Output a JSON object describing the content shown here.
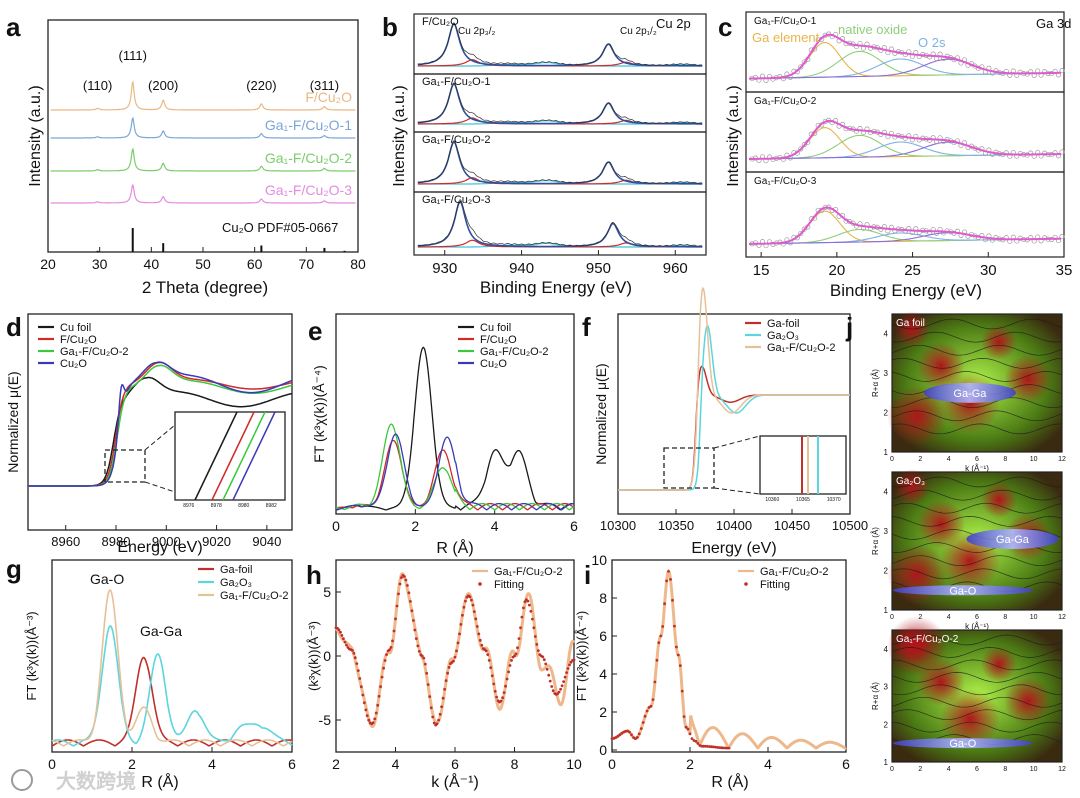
{
  "watermark": "大数跨境",
  "panels": {
    "a": {
      "letter": "a",
      "xlabel": "2 Theta (degree)",
      "ylabel": "Intensity (a.u.)",
      "xticks": [
        "20",
        "30",
        "40",
        "50",
        "60",
        "70",
        "80"
      ],
      "peak_labels": [
        "(110)",
        "(111)",
        "(200)",
        "(220)",
        "(311)"
      ],
      "series": [
        {
          "name": "F/Cu₂O",
          "color": "#e9b884"
        },
        {
          "name": "Ga₁-F/Cu₂O-1",
          "color": "#7aa7d8"
        },
        {
          "name": "Ga₁-F/Cu₂O-2",
          "color": "#7dcc6c"
        },
        {
          "name": "Ga₁-F/Cu₂O-3",
          "color": "#e58be0"
        }
      ],
      "reference": "Cu₂O PDF#05-0667"
    },
    "b": {
      "letter": "b",
      "tag": "Cu 2p",
      "xlabel": "Binding Energy (eV)",
      "ylabel": "Intensity (a.u.)",
      "xticks": [
        "930",
        "940",
        "950",
        "960"
      ],
      "peak_3_2": "Cu 2p₃/₂",
      "peak_1_2": "Cu 2p₁/₂",
      "samples": [
        "F/Cu₂O",
        "Ga₁-F/Cu₂O-1",
        "Ga₁-F/Cu₂O-2",
        "Ga₁-F/Cu₂O-3"
      ]
    },
    "c": {
      "letter": "c",
      "tag": "Ga 3d",
      "xlabel": "Binding Energy (eV)",
      "ylabel": "Intensity (a.u.)",
      "xticks": [
        "15",
        "20",
        "25",
        "30",
        "35"
      ],
      "samples": [
        "Ga₁-F/Cu₂O-1",
        "Ga₁-F/Cu₂O-2",
        "Ga₁-F/Cu₂O-3"
      ],
      "components": [
        {
          "name": "Ga element",
          "color": "#e8b44a"
        },
        {
          "name": "native oxide",
          "color": "#8fcf7a"
        },
        {
          "name": "O 2s",
          "color": "#7fb2e5"
        }
      ]
    },
    "d": {
      "letter": "d",
      "xlabel": "Energy (eV)",
      "ylabel": "Normalized μ(E)",
      "xticks": [
        "8960",
        "8980",
        "9000",
        "9020",
        "9040"
      ],
      "inset_ticks": [
        "8976",
        "8978",
        "8980",
        "8982"
      ],
      "legend": [
        {
          "name": "Cu foil",
          "color": "#1a1a1a"
        },
        {
          "name": "F/Cu₂O",
          "color": "#d22a2a"
        },
        {
          "name": "Ga₁-F/Cu₂O-2",
          "color": "#3cc83c"
        },
        {
          "name": "Cu₂O",
          "color": "#3a3ab8"
        }
      ]
    },
    "e": {
      "letter": "e",
      "xlabel": "R (Å)",
      "ylabel": "FT (k³χ(k))(Å⁻⁴)",
      "xticks": [
        "0",
        "2",
        "4",
        "6"
      ],
      "legend": [
        {
          "name": "Cu foil",
          "color": "#1a1a1a"
        },
        {
          "name": "F/Cu₂O",
          "color": "#d22a2a"
        },
        {
          "name": "Ga₁-F/Cu₂O-2",
          "color": "#3cc83c"
        },
        {
          "name": "Cu₂O",
          "color": "#3a3ab8"
        }
      ]
    },
    "f": {
      "letter": "f",
      "xlabel": "Energy (eV)",
      "ylabel": "Normalized μ(E)",
      "xticks": [
        "10300",
        "10350",
        "10400",
        "10450",
        "10500"
      ],
      "inset_ticks": [
        "10360",
        "10365",
        "10370"
      ],
      "legend": [
        {
          "name": "Ga-foil",
          "color": "#c0302a"
        },
        {
          "name": "Ga₂O₃",
          "color": "#5ad6dc"
        },
        {
          "name": "Ga₁-F/Cu₂O-2",
          "color": "#e7c09a"
        }
      ]
    },
    "g": {
      "letter": "g",
      "xlabel": "R (Å)",
      "ylabel": "FT (k³χ(k))(Å⁻³)",
      "xticks": [
        "0",
        "2",
        "4",
        "6"
      ],
      "annot_1": "Ga-O",
      "annot_2": "Ga-Ga",
      "legend": [
        {
          "name": "Ga-foil",
          "color": "#c0302a"
        },
        {
          "name": "Ga₂O₃",
          "color": "#5ad6dc"
        },
        {
          "name": "Ga₁-F/Cu₂O-2",
          "color": "#e7c09a"
        }
      ]
    },
    "h": {
      "letter": "h",
      "xlabel": "k (Å⁻¹)",
      "ylabel": "(k³χ(k))(Å⁻³)",
      "xticks": [
        "2",
        "4",
        "6",
        "8",
        "10"
      ],
      "yticks": [
        "5",
        "0",
        "-5"
      ],
      "legend": [
        {
          "name": "Ga₁-F/Cu₂O-2",
          "color": "#edb88c"
        },
        {
          "name": "Fitting",
          "color": "#c0302a"
        }
      ]
    },
    "i": {
      "letter": "i",
      "xlabel": "R (Å)",
      "ylabel": "FT (k³χ(k))(Å⁻⁴)",
      "xticks": [
        "0",
        "2",
        "4",
        "6"
      ],
      "yticks": [
        "10",
        "8",
        "6",
        "4",
        "2",
        "0"
      ],
      "legend": [
        {
          "name": "Ga₁-F/Cu₂O-2",
          "color": "#edb88c"
        },
        {
          "name": "Fitting",
          "color": "#c0302a"
        }
      ]
    },
    "j": {
      "letter": "j",
      "ylabel": "R+α (Å)",
      "xlabel": "k (Å⁻¹)",
      "xticks": [
        "0",
        "2",
        "4",
        "6",
        "8",
        "10",
        "12"
      ],
      "maps": [
        {
          "title": "Ga foil",
          "feature": "Ga-Ga",
          "yticks": [
            "4",
            "3",
            "2",
            "1"
          ]
        },
        {
          "title": "Ga₂O₃",
          "feature": "Ga-Ga",
          "feature_2": "Ga-O",
          "yticks": [
            "4",
            "3",
            "2",
            "1"
          ]
        },
        {
          "title": "Ga₁-F/Cu₂O-2",
          "feature": "Ga-O",
          "yticks": [
            "4",
            "3",
            "2",
            "1"
          ]
        }
      ]
    }
  },
  "chart_data": [
    {
      "panel": "a",
      "type": "line",
      "title": "",
      "xlabel": "2 Theta (degree)",
      "ylabel": "Intensity (a.u.)",
      "xlim": [
        20,
        80
      ],
      "peaks_2theta": [
        29.6,
        36.4,
        42.3,
        61.3,
        73.5
      ],
      "reference_sticks": [
        {
          "x": 29.6,
          "h": 0.05
        },
        {
          "x": 36.4,
          "h": 1.0
        },
        {
          "x": 42.3,
          "h": 0.37
        },
        {
          "x": 61.3,
          "h": 0.27
        },
        {
          "x": 73.5,
          "h": 0.17
        },
        {
          "x": 77.4,
          "h": 0.05
        }
      ]
    },
    {
      "panel": "b",
      "type": "line",
      "xlabel": "Binding Energy (eV)",
      "ylabel": "Intensity (a.u.)",
      "xlim": [
        926,
        964
      ],
      "peaks_eV": [
        {
          "x": 932.4,
          "rel": 1.0
        },
        {
          "x": 934.5,
          "rel": 0.15
        },
        {
          "x": 943.5,
          "rel": 0.08
        },
        {
          "x": 952.2,
          "rel": 0.55
        },
        {
          "x": 954.5,
          "rel": 0.1
        }
      ]
    },
    {
      "panel": "c",
      "type": "line",
      "xlabel": "Binding Energy (eV)",
      "ylabel": "Intensity (a.u.)",
      "xlim": [
        14,
        35
      ],
      "components_eV": [
        {
          "name": "Ga element",
          "x": 19.2
        },
        {
          "name": "native oxide",
          "x": 21.5
        },
        {
          "name": "native oxide",
          "x": 24.0
        },
        {
          "name": "O 2s",
          "x": 26.8
        }
      ]
    },
    {
      "panel": "d",
      "type": "line",
      "xlabel": "Energy (eV)",
      "ylabel": "Normalized μ(E)",
      "xlim": [
        8945,
        9050
      ],
      "edge_eV": {
        "Cu foil": 8979,
        "F/Cu₂O": 8980,
        "Ga₁-F/Cu₂O-2": 8980.5,
        "Cu₂O": 8981
      },
      "white_line_eV": 8997
    },
    {
      "panel": "e",
      "type": "line",
      "xlabel": "R (Å)",
      "ylabel": "FT (k³χ(k))(Å⁻⁴)",
      "xlim": [
        0,
        6
      ],
      "peaks": [
        {
          "series": "Cu foil",
          "R": [
            2.2,
            4.0,
            4.6
          ],
          "amp": [
            1.0,
            0.33,
            0.33
          ]
        },
        {
          "series": "F/Cu₂O",
          "R": [
            1.45,
            2.7
          ],
          "amp": [
            0.42,
            0.36
          ]
        },
        {
          "series": "Ga₁-F/Cu₂O-2",
          "R": [
            1.4,
            2.7
          ],
          "amp": [
            0.53,
            0.26
          ]
        },
        {
          "series": "Cu₂O",
          "R": [
            1.5,
            2.8
          ],
          "amp": [
            0.46,
            0.44
          ]
        }
      ]
    },
    {
      "panel": "f",
      "type": "line",
      "xlabel": "Energy (eV)",
      "ylabel": "Normalized μ(E)",
      "xlim": [
        10300,
        10500
      ],
      "edge_eV": {
        "Ga-foil": 10367,
        "Ga₂O₃": 10371,
        "Ga₁-F/Cu₂O-2": 10369
      },
      "white_line_eV": {
        "Ga₂O₃": 10375,
        "Ga₁-F/Cu₂O-2": 10372
      }
    },
    {
      "panel": "g",
      "type": "line",
      "xlabel": "R (Å)",
      "ylabel": "FT (k³χ(k))(Å⁻³)",
      "xlim": [
        0,
        6
      ],
      "peaks": [
        {
          "series": "Ga-foil",
          "R": [
            2.3
          ],
          "amp": [
            0.58
          ]
        },
        {
          "series": "Ga₂O₃",
          "R": [
            1.45,
            2.65,
            3.6
          ],
          "amp": [
            0.78,
            0.58,
            0.22
          ]
        },
        {
          "series": "Ga₁-F/Cu₂O-2",
          "R": [
            1.45,
            2.3
          ],
          "amp": [
            1.0,
            0.22
          ]
        }
      ]
    },
    {
      "panel": "h",
      "type": "line",
      "xlabel": "k (Å⁻¹)",
      "ylabel": "(k³χ(k))(Å⁻³)",
      "xlim": [
        2,
        10
      ],
      "ylim": [
        -7.5,
        7.5
      ],
      "series": [
        {
          "name": "Fitting",
          "x": [
            2.0,
            2.5,
            3.2,
            3.8,
            4.25,
            4.9,
            5.35,
            5.9,
            6.45,
            7.0,
            7.5,
            8.0,
            8.4,
            8.9,
            9.4,
            10.0
          ],
          "y": [
            2.2,
            0.5,
            -5.3,
            0.5,
            6.3,
            0.0,
            -5.4,
            -0.5,
            4.7,
            0.5,
            -3.6,
            0.0,
            4.4,
            0.0,
            -3.0,
            -0.3
          ]
        }
      ]
    },
    {
      "panel": "i",
      "type": "line",
      "xlabel": "R (Å)",
      "ylabel": "FT (k³χ(k))(Å⁻⁴)",
      "xlim": [
        0,
        6
      ],
      "ylim": [
        0,
        10
      ],
      "series": [
        {
          "name": "Fitting",
          "x": [
            0.0,
            0.4,
            0.6,
            1.0,
            1.25,
            1.45,
            1.7,
            1.9,
            2.1,
            2.3,
            3.0
          ],
          "y": [
            0.6,
            1.0,
            0.6,
            2.3,
            6.0,
            9.4,
            5.0,
            1.2,
            0.5,
            0.2,
            0.1
          ]
        }
      ]
    },
    {
      "panel": "j",
      "type": "heatmap",
      "xlabel": "k (Å⁻¹)",
      "ylabel": "R+α (Å)",
      "xlim": [
        0,
        12
      ],
      "ylim": [
        1,
        4.5
      ],
      "maxima": [
        {
          "map": "Ga foil",
          "label": "Ga-Ga",
          "k": 5.5,
          "R": 2.5
        },
        {
          "map": "Ga₂O₃",
          "label": "Ga-Ga",
          "k": 8.5,
          "R": 2.8
        },
        {
          "map": "Ga₂O₃",
          "label": "Ga-O",
          "k": 5.0,
          "R": 1.5
        },
        {
          "map": "Ga₁-F/Cu₂O-2",
          "label": "Ga-O",
          "k": 5.0,
          "R": 1.5
        }
      ]
    }
  ]
}
